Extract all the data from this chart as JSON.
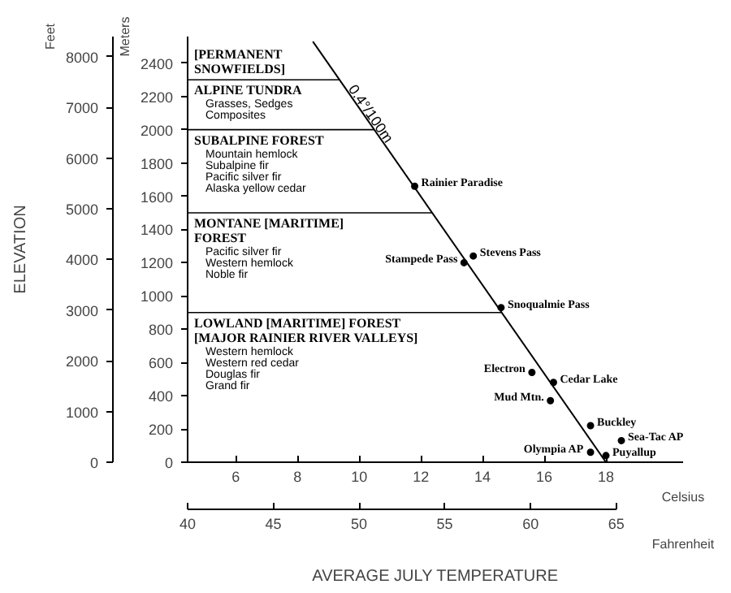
{
  "chart_data": {
    "type": "scatter",
    "xlabel": "Celsius",
    "x2label": "Fahrenheit",
    "ylabel": "Meters",
    "y2label": "Feet",
    "xlim": [
      4.44,
      20.5
    ],
    "xticks": [
      6,
      8,
      10,
      12,
      14,
      16,
      18
    ],
    "x2lim": [
      40,
      68.9
    ],
    "x2ticks": [
      40,
      45,
      50,
      55,
      60,
      65
    ],
    "ylim": [
      0,
      2560
    ],
    "yticks": [
      0,
      200,
      400,
      600,
      800,
      1000,
      1200,
      1400,
      1600,
      1800,
      2000,
      2200,
      2400
    ],
    "y2lim": [
      0,
      8400
    ],
    "y2ticks": [
      0,
      1000,
      2000,
      3000,
      4000,
      5000,
      6000,
      7000,
      8000
    ],
    "grid": false,
    "series": [
      {
        "color": "#000000",
        "marker": "circle",
        "x": [
          11.8,
          13.7,
          13.4,
          14.6,
          15.6,
          16.3,
          16.2,
          17.5,
          18.5,
          17.5,
          18.0
        ],
        "values": [
          1660,
          1240,
          1200,
          930,
          540,
          480,
          370,
          220,
          130,
          60,
          40
        ]
      },
      {
        "type": "line",
        "color": "#000000",
        "x": [
          18.0,
          8.5
        ],
        "values": [
          0,
          2530
        ]
      }
    ],
    "ref_lines": [
      {
        "axis": "y",
        "value": 2300,
        "label": "ALPINE TUNDRA\n\nGrasses, Sedges\nComposites"
      },
      {
        "axis": "y",
        "value": 2000,
        "label": "SUBALPINE FOREST\n\nMountain hemlock\nSubalpine fir\nPacific silver fir\nAlaska yellow cedar"
      },
      {
        "axis": "y",
        "value": 1500,
        "label": "MONTANE [MARITIME]\nFOREST\n\nPacific silver fir\nWestern hemlock\nNoble fir"
      },
      {
        "axis": "y",
        "value": 900,
        "label": "LOWLAND [MARITIME] FOREST\n[MAJOR RAINIER RIVER VALLEYS]\n\nWestern hemlock\nWestern red cedar\nDouglas fir\nGrand fir"
      }
    ],
    "annotations": [
      "ELEVATION",
      "AVERAGE JULY TEMPERATURE",
      "[PERMANENT\nSNOWFIELDS]",
      {
        "text": "0.4°/100m",
        "x": 10.38,
        "y": 2096
      },
      {
        "text": "Rainier Paradise",
        "x": 11.8,
        "y": 1660
      },
      {
        "text": "Stevens Pass",
        "x": 13.7,
        "y": 1240
      },
      {
        "text": "Stampede Pass",
        "x": 13.4,
        "y": 1200
      },
      {
        "text": "Snoqualmie Pass",
        "x": 14.6,
        "y": 930
      },
      {
        "text": "Electron",
        "x": 15.6,
        "y": 540
      },
      {
        "text": "Cedar Lake",
        "x": 16.3,
        "y": 480
      },
      {
        "text": "Mud Mtn.",
        "x": 16.2,
        "y": 370
      },
      {
        "text": "Buckley",
        "x": 17.5,
        "y": 220
      },
      {
        "text": "Sea-Tac AP",
        "x": 18.5,
        "y": 130
      },
      {
        "text": "Olympia AP",
        "x": 17.5,
        "y": 60
      },
      {
        "text": "Puyallup",
        "x": 18.0,
        "y": 40
      }
    ]
  }
}
